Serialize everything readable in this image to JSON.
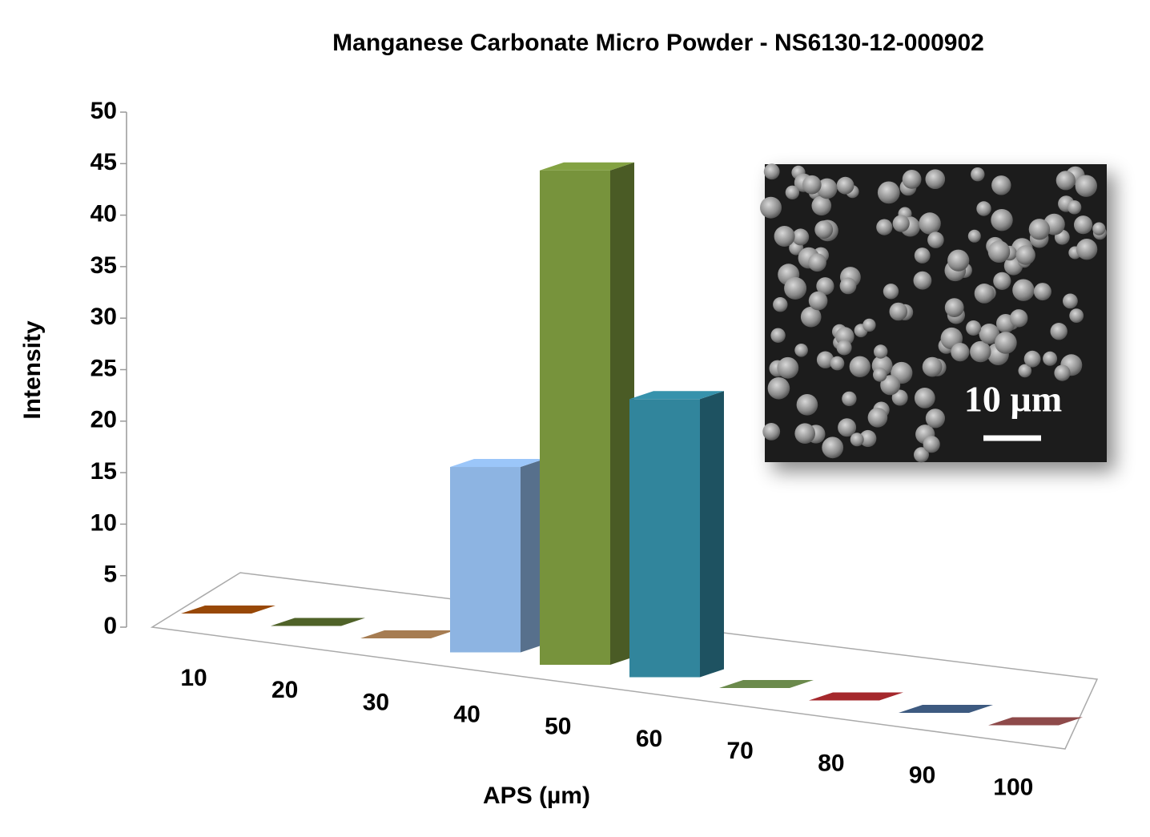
{
  "chart_data": {
    "type": "bar3d",
    "title": "Manganese Carbonate Micro Powder - NS6130-12-000902",
    "y_label": "Intensity",
    "x_label": "APS (µm)",
    "categories": [
      "10",
      "20",
      "30",
      "40",
      "50",
      "60",
      "70",
      "80",
      "90",
      "100"
    ],
    "values": [
      0,
      0,
      0,
      18,
      48,
      27,
      0,
      0,
      0,
      0
    ],
    "colors": [
      "#984807",
      "#4f6228",
      "#a67c52",
      "#8db4e2",
      "#77933c",
      "#31859c",
      "#6b8a4c",
      "#a5282c",
      "#3d5a80",
      "#8e4a4a"
    ],
    "ylim": [
      0,
      50
    ],
    "yticks": [
      0,
      5,
      10,
      15,
      20,
      25,
      30,
      35,
      40,
      45,
      50
    ],
    "inset_label": "10 µm"
  }
}
